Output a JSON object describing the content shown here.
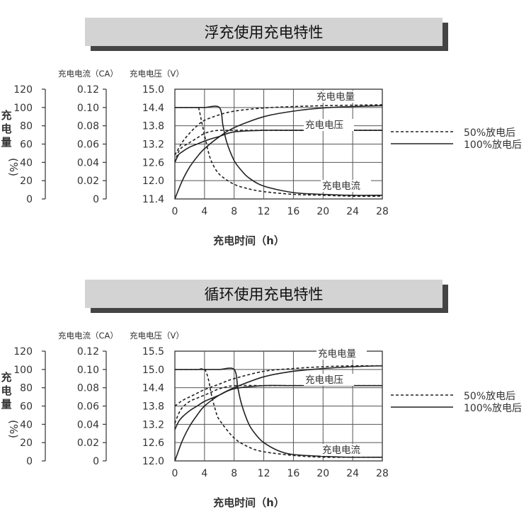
{
  "chart_data": [
    {
      "type": "line",
      "title": "浮充使用充电特性",
      "xlabel": "充电时间（h）",
      "x_ticks": [
        "0",
        "4",
        "8",
        "12",
        "16",
        "20",
        "24",
        "28"
      ],
      "xlim": [
        0,
        28
      ],
      "axes": {
        "capacity": {
          "label": "充电量",
          "unit": "(%)",
          "ticks": [
            "120",
            "100",
            "80",
            "60",
            "40",
            "20",
            "0"
          ],
          "lim": [
            0,
            120
          ]
        },
        "current": {
          "label": "充电电流（CA）",
          "ticks": [
            "0.12",
            "0.10",
            "0.08",
            "0.06",
            "0.04",
            "0.02",
            "0"
          ],
          "lim": [
            0,
            0.12
          ]
        },
        "voltage": {
          "label": "充电电压（V）",
          "ticks": [
            "15.0",
            "14.4",
            "13.8",
            "13.2",
            "12.6",
            "12.0",
            "11.4"
          ],
          "lim": [
            11.4,
            15.0
          ]
        }
      },
      "curve_labels": {
        "capacity": "充电电量",
        "voltage": "充电电压",
        "current": "充电电流"
      },
      "series": [
        {
          "curve": "capacity",
          "condition": "50%放电后",
          "style": "dashed",
          "axis": "capacity",
          "x": [
            0,
            1,
            2,
            3,
            4,
            6,
            8,
            12,
            16,
            20,
            24,
            28
          ],
          "y": [
            48,
            62,
            72,
            80,
            86,
            92,
            96,
            99.5,
            101,
            102,
            102.5,
            103
          ]
        },
        {
          "curve": "capacity",
          "condition": "100%放电后",
          "style": "solid",
          "axis": "capacity",
          "x": [
            0,
            1,
            2,
            3,
            4,
            6,
            8,
            12,
            16,
            20,
            24,
            28
          ],
          "y": [
            0,
            20,
            35,
            46,
            55,
            68,
            78,
            90,
            96,
            99.5,
            101,
            102
          ]
        },
        {
          "curve": "voltage",
          "condition": "50%放电后",
          "style": "dashed",
          "axis": "voltage",
          "x": [
            0,
            0.5,
            1,
            2,
            3,
            4,
            5,
            6,
            8,
            12,
            16,
            20,
            24,
            28
          ],
          "y": [
            12.6,
            12.95,
            13.1,
            13.25,
            13.4,
            13.55,
            13.62,
            13.65,
            13.65,
            13.65,
            13.65,
            13.65,
            13.65,
            13.65
          ]
        },
        {
          "curve": "voltage",
          "condition": "100%放电后",
          "style": "solid",
          "axis": "voltage",
          "x": [
            0,
            0.5,
            1,
            2,
            3,
            4,
            5,
            6,
            8,
            12,
            16,
            20,
            24,
            28
          ],
          "y": [
            12.6,
            12.85,
            12.95,
            13.1,
            13.2,
            13.3,
            13.38,
            13.45,
            13.6,
            13.65,
            13.65,
            13.65,
            13.65,
            13.65
          ]
        },
        {
          "curve": "current",
          "condition": "50%放电后",
          "style": "dashed",
          "axis": "current",
          "x": [
            0,
            1,
            2,
            3,
            3.2,
            3.6,
            4,
            4.5,
            5,
            6,
            8,
            10,
            12,
            16,
            20,
            24,
            28
          ],
          "y": [
            0.1,
            0.1,
            0.1,
            0.1,
            0.1,
            0.085,
            0.07,
            0.052,
            0.04,
            0.027,
            0.016,
            0.011,
            0.008,
            0.005,
            0.004,
            0.003,
            0.003
          ]
        },
        {
          "curve": "current",
          "condition": "100%放电后",
          "style": "solid",
          "axis": "current",
          "x": [
            0,
            2,
            4,
            6,
            6.5,
            7,
            8,
            9,
            10,
            12,
            16,
            20,
            24,
            28
          ],
          "y": [
            0.1,
            0.1,
            0.1,
            0.1,
            0.08,
            0.062,
            0.042,
            0.031,
            0.023,
            0.014,
            0.007,
            0.005,
            0.004,
            0.004
          ]
        }
      ]
    },
    {
      "type": "line",
      "title": "循环使用充电特性",
      "xlabel": "充电时间（h）",
      "x_ticks": [
        "0",
        "4",
        "8",
        "12",
        "16",
        "20",
        "24",
        "28"
      ],
      "xlim": [
        0,
        28
      ],
      "axes": {
        "capacity": {
          "label": "充电量",
          "unit": "(%)",
          "ticks": [
            "120",
            "100",
            "80",
            "60",
            "40",
            "20",
            "0"
          ],
          "lim": [
            0,
            120
          ]
        },
        "current": {
          "label": "充电电流（CA）",
          "ticks": [
            "0.12",
            "0.10",
            "0.08",
            "0.06",
            "0.04",
            "0.02",
            "0"
          ],
          "lim": [
            0,
            0.12
          ]
        },
        "voltage": {
          "label": "充电电压（V）",
          "ticks": [
            "15.5",
            "15.0",
            "14.4",
            "13.8",
            "13.2",
            "12.6",
            "12.0"
          ],
          "lim": [
            12.0,
            15.5
          ]
        }
      },
      "curve_labels": {
        "capacity": "充电电量",
        "voltage": "充电电压",
        "current": "充电电流"
      },
      "series": [
        {
          "curve": "capacity",
          "condition": "50%放电后",
          "style": "dashed",
          "axis": "capacity",
          "x": [
            0,
            1,
            2,
            3,
            4,
            6,
            8,
            12,
            16,
            20,
            24,
            28
          ],
          "y": [
            60,
            66,
            70,
            74,
            78,
            84,
            90,
            98,
            101,
            103,
            104,
            104
          ]
        },
        {
          "curve": "capacity",
          "condition": "100%放电后",
          "style": "solid",
          "axis": "capacity",
          "x": [
            0,
            1,
            2,
            3,
            4,
            6,
            8,
            12,
            16,
            20,
            24,
            28
          ],
          "y": [
            0,
            22,
            38,
            50,
            60,
            72,
            80,
            92,
            98,
            101,
            103,
            104
          ]
        },
        {
          "curve": "voltage",
          "condition": "50%放电后",
          "style": "dashed",
          "axis": "voltage",
          "x": [
            0,
            0.5,
            1,
            2,
            3,
            4,
            5,
            6,
            8,
            12,
            16,
            20,
            24,
            28
          ],
          "y": [
            13.2,
            13.5,
            13.7,
            13.9,
            14.0,
            14.1,
            14.2,
            14.3,
            14.4,
            14.4,
            14.4,
            14.4,
            14.4,
            14.4
          ]
        },
        {
          "curve": "voltage",
          "condition": "100%放电后",
          "style": "solid",
          "axis": "voltage",
          "x": [
            0,
            0.5,
            1,
            2,
            3,
            4,
            5,
            6,
            8,
            12,
            16,
            20,
            24,
            28
          ],
          "y": [
            13.0,
            13.25,
            13.4,
            13.6,
            13.75,
            13.9,
            14.0,
            14.1,
            14.3,
            14.4,
            14.4,
            14.4,
            14.4,
            14.4
          ]
        },
        {
          "curve": "current",
          "condition": "50%放电后",
          "style": "dashed",
          "axis": "current",
          "x": [
            0,
            1,
            2,
            3,
            4,
            4.5,
            5,
            5.5,
            6,
            8,
            10,
            12,
            16,
            20,
            24,
            28
          ],
          "y": [
            0.1,
            0.1,
            0.1,
            0.1,
            0.1,
            0.09,
            0.07,
            0.055,
            0.045,
            0.025,
            0.015,
            0.01,
            0.006,
            0.004,
            0.004,
            0.004
          ]
        },
        {
          "curve": "current",
          "condition": "100%放电后",
          "style": "solid",
          "axis": "current",
          "x": [
            0,
            2,
            4,
            6,
            8,
            8.5,
            9,
            10,
            11,
            12,
            14,
            16,
            20,
            24,
            28
          ],
          "y": [
            0.1,
            0.1,
            0.1,
            0.1,
            0.1,
            0.08,
            0.062,
            0.04,
            0.028,
            0.02,
            0.011,
            0.007,
            0.005,
            0.004,
            0.004
          ]
        }
      ]
    }
  ],
  "legend": [
    {
      "label": "50%放电后",
      "style": "dashed"
    },
    {
      "label": "100%放电后",
      "style": "solid"
    }
  ]
}
